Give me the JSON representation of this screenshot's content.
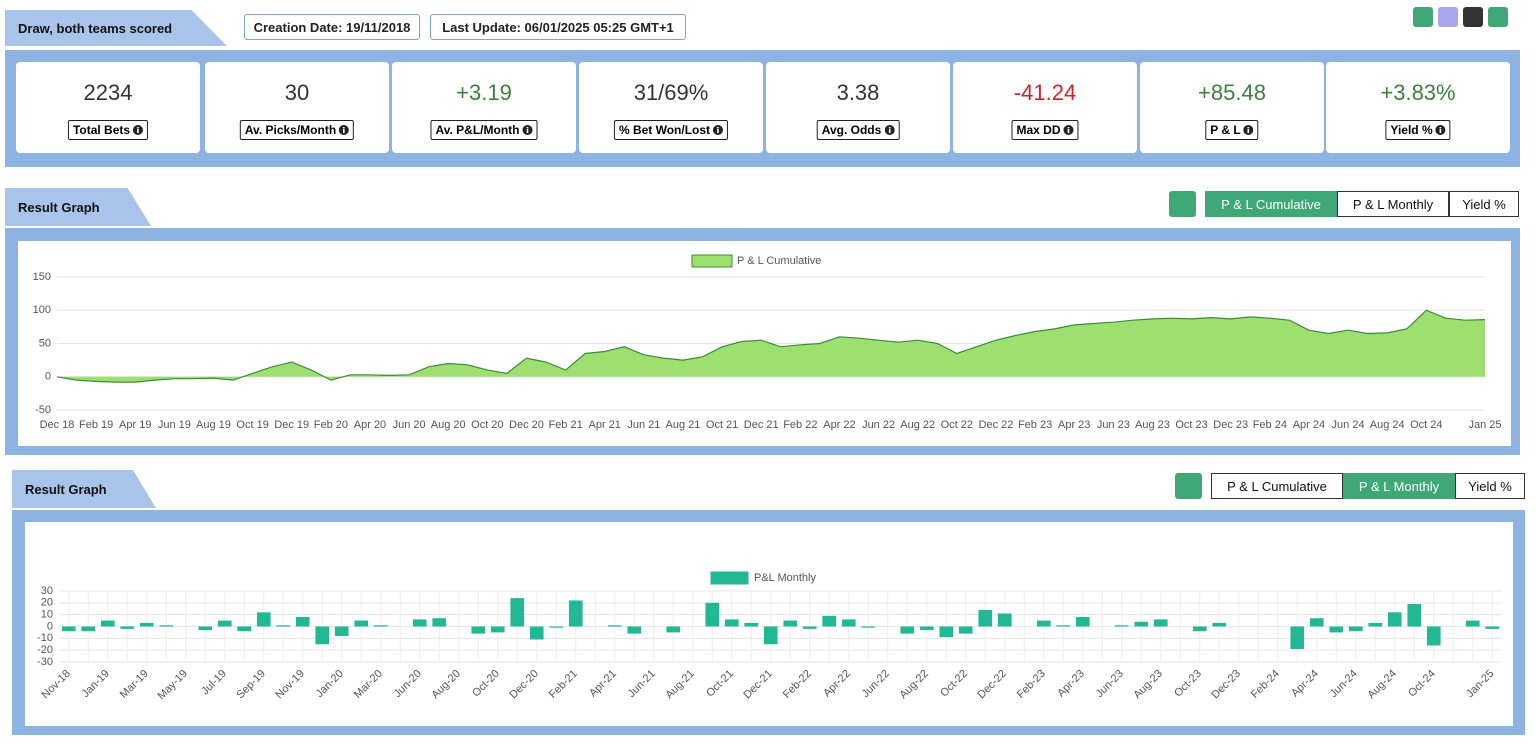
{
  "header": {
    "title": "Draw, both teams scored",
    "creation_date": "Creation Date: 19/11/2018",
    "last_update": "Last Update: 06/01/2025 05:25 GMT+1"
  },
  "stats": [
    {
      "value": "2234",
      "label": "Total Bets",
      "color": "#333333"
    },
    {
      "value": "30",
      "label": "Av. Picks/Month",
      "color": "#333333"
    },
    {
      "value": "+3.19",
      "label": "Av. P&L/Month",
      "color": "#3f7f3f"
    },
    {
      "value": "31/69%",
      "label": "% Bet Won/Lost",
      "color": "#333333"
    },
    {
      "value": "3.38",
      "label": "Avg. Odds",
      "color": "#333333"
    },
    {
      "value": "-41.24",
      "label": "Max DD",
      "color": "#d9202a"
    },
    {
      "value": "+85.48",
      "label": "P & L",
      "color": "#3f7f3f"
    },
    {
      "value": "+3.83%",
      "label": "Yield %",
      "color": "#3f7f3f"
    }
  ],
  "sections": [
    {
      "title": "Result Graph",
      "tabs": [
        "P & L Cumulative",
        "P & L Monthly",
        "Yield %"
      ],
      "active": 0
    },
    {
      "title": "Result Graph",
      "tabs": [
        "P & L Cumulative",
        "P & L Monthly",
        "Yield %"
      ],
      "active": 1
    }
  ],
  "chart_data": [
    {
      "type": "area",
      "grid": true,
      "categories": [
        "Dec 18",
        null,
        "Feb 19",
        null,
        "Apr 19",
        null,
        "Jun 19",
        null,
        "Aug 19",
        null,
        "Oct 19",
        null,
        "Dec 19",
        null,
        "Feb 20",
        null,
        "Apr 20",
        null,
        "Jun 20",
        null,
        "Aug 20",
        null,
        "Oct 20",
        null,
        "Dec 20",
        null,
        "Feb 21",
        null,
        "Apr 21",
        null,
        "Jun 21",
        null,
        "Aug 21",
        null,
        "Oct 21",
        null,
        "Dec 21",
        null,
        "Feb 22",
        null,
        "Apr 22",
        null,
        "Jun 22",
        null,
        "Aug 22",
        null,
        "Oct 22",
        null,
        "Dec 22",
        null,
        "Feb 23",
        null,
        "Apr 23",
        null,
        "Jun 23",
        null,
        "Aug 23",
        null,
        "Oct 23",
        null,
        "Dec 23",
        null,
        "Feb 24",
        null,
        "Apr 24",
        null,
        "Jun 24",
        null,
        "Aug 24",
        null,
        "Oct 24",
        null,
        null,
        "Jan 25"
      ],
      "series": [
        {
          "name": "P & L Cumulative",
          "color": "#9de070",
          "line_color": "#3d8b3d",
          "values": [
            0,
            -5,
            -7,
            -8,
            -8,
            -5,
            -3,
            -3,
            -2,
            -5,
            5,
            15,
            22,
            10,
            -5,
            3,
            3,
            2,
            3,
            15,
            20,
            18,
            10,
            5,
            28,
            22,
            10,
            35,
            38,
            45,
            33,
            28,
            25,
            30,
            45,
            53,
            55,
            45,
            48,
            50,
            60,
            58,
            55,
            52,
            55,
            50,
            35,
            45,
            55,
            62,
            68,
            72,
            78,
            80,
            82,
            85,
            87,
            88,
            87,
            89,
            87,
            90,
            88,
            85,
            70,
            65,
            70,
            65,
            66,
            72,
            100,
            88,
            85,
            86
          ]
        }
      ],
      "ylim": [
        -50,
        150
      ],
      "yticks": [
        -50,
        0,
        50,
        100,
        150
      ]
    },
    {
      "type": "bar",
      "grid": true,
      "categories": [
        "Nov-18",
        null,
        "Jan-19",
        null,
        "Mar-19",
        null,
        "May-19",
        null,
        "Jul-19",
        null,
        "Sep-19",
        null,
        "Nov-19",
        null,
        "Jan-20",
        null,
        "Mar-20",
        null,
        "Jun-20",
        null,
        "Aug-20",
        null,
        "Oct-20",
        null,
        "Dec-20",
        null,
        "Feb-21",
        null,
        "Apr-21",
        null,
        "Jun-21",
        null,
        "Aug-21",
        null,
        "Oct-21",
        null,
        "Dec-21",
        null,
        "Feb-22",
        null,
        "Apr-22",
        null,
        "Jun-22",
        null,
        "Aug-22",
        null,
        "Oct-22",
        null,
        "Dec-22",
        null,
        "Feb-23",
        null,
        "Apr-23",
        null,
        "Jun-23",
        null,
        "Aug-23",
        null,
        "Oct-23",
        null,
        "Dec-23",
        null,
        "Feb-24",
        null,
        "Apr-24",
        null,
        "Jun-24",
        null,
        "Aug-24",
        null,
        "Oct-24",
        null,
        null,
        "Jan-25"
      ],
      "series": [
        {
          "name": "P&L Monthly",
          "color": "#21b893",
          "values": [
            -4,
            -4,
            5,
            -2,
            3,
            1,
            0,
            -3,
            5,
            -4,
            12,
            1,
            8,
            -15,
            -8,
            5,
            1,
            0,
            6,
            7,
            0,
            -6,
            -5,
            24,
            -11,
            -1,
            22,
            0,
            1,
            -6,
            0,
            -5,
            0,
            20,
            6,
            3,
            -15,
            5,
            -2,
            9,
            6,
            -1,
            0,
            -6,
            -3,
            -9,
            -6,
            14,
            11,
            0,
            5,
            1,
            8,
            0,
            1,
            4,
            6,
            0,
            -4,
            3,
            0,
            0,
            0,
            -19,
            7,
            -5,
            -4,
            3,
            12,
            19,
            -16,
            0,
            5,
            -2
          ]
        }
      ],
      "ylim": [
        -30,
        30
      ],
      "yticks": [
        -30,
        -20,
        -10,
        0,
        10,
        20,
        30
      ]
    }
  ]
}
